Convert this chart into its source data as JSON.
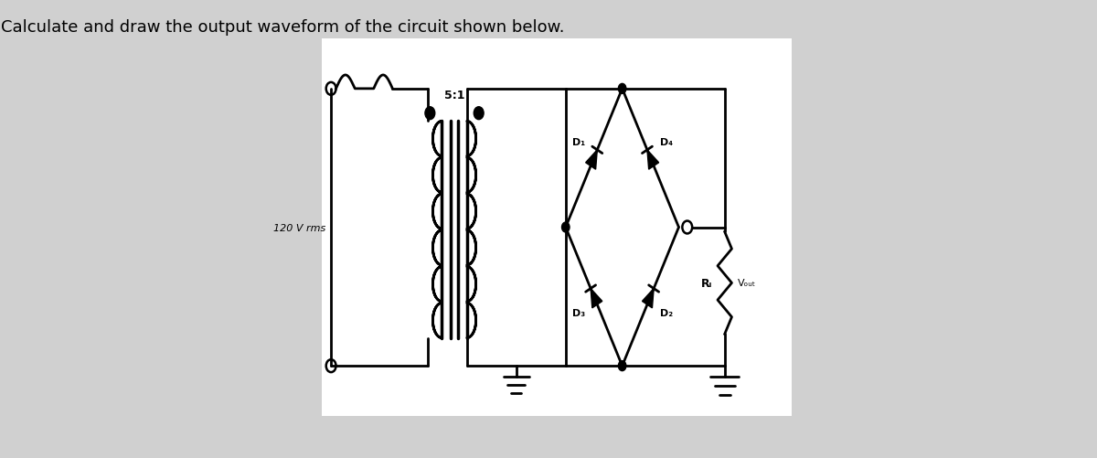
{
  "title": "Calculate and draw the output waveform of the circuit shown below.",
  "title_fontsize": 13,
  "bg_color": "#d0d0d0",
  "line_color": "#000000",
  "fig_width": 12.0,
  "fig_height": 5.02,
  "source_label": "120 V rms",
  "transformer_label": "5:1",
  "d1_label": "D₁",
  "d4_label": "D₄",
  "d3_label": "D₃",
  "d2_label": "D₂",
  "rl_label": "Rₗ",
  "vout_label": "Vₒᵤₜ",
  "circuit_bg": "#ffffff"
}
